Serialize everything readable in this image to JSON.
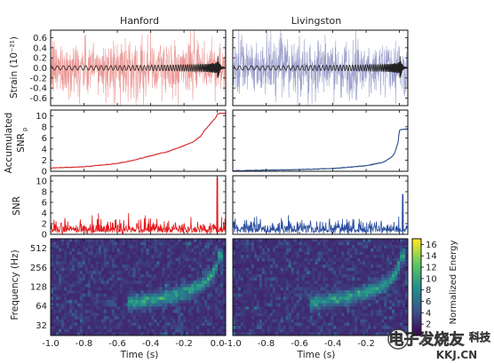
{
  "chart_data": [
    {
      "type": "line",
      "panel": "strain",
      "title_left": "Hanford",
      "title_right": "Livingston",
      "ylabel": "Strain (10⁻²¹)",
      "yticks": [
        "0.6",
        "0.4",
        "0.2",
        "0.0",
        "-0.2",
        "-0.4",
        "-0.6"
      ],
      "ylim": [
        -0.75,
        0.75
      ],
      "xlim": [
        -1.0,
        0.05
      ],
      "series": [
        {
          "detector": "Hanford",
          "color": "#e88a86",
          "kind": "noisy data"
        },
        {
          "detector": "Hanford",
          "color": "#222222",
          "kind": "template"
        },
        {
          "detector": "Livingston",
          "color": "#8b8fc2",
          "kind": "noisy data"
        },
        {
          "detector": "Livingston",
          "color": "#222222",
          "kind": "template"
        }
      ]
    },
    {
      "type": "line",
      "panel": "accumulated-snr",
      "ylabel_1": "Accumulated",
      "ylabel_2": "SNR",
      "ylabel_sub": "p",
      "yticks": [
        "10",
        "8",
        "6",
        "4",
        "2",
        "0"
      ],
      "ylim": [
        0,
        11
      ],
      "xlim": [
        -1.0,
        0.05
      ],
      "series": [
        {
          "detector": "Hanford",
          "color": "#d62728",
          "x": [
            -1.0,
            -0.8,
            -0.6,
            -0.5,
            -0.4,
            -0.3,
            -0.2,
            -0.15,
            -0.1,
            -0.08,
            -0.05,
            -0.03,
            -0.01,
            0.0,
            0.01,
            0.05
          ],
          "y": [
            0.6,
            0.8,
            1.4,
            2.0,
            2.8,
            3.5,
            4.6,
            5.2,
            6.3,
            7.2,
            8.2,
            9.0,
            9.6,
            10.3,
            10.4,
            10.4
          ]
        },
        {
          "detector": "Livingston",
          "color": "#2b4d8a",
          "x": [
            -1.0,
            -0.6,
            -0.4,
            -0.2,
            -0.1,
            -0.07,
            -0.05,
            -0.03,
            -0.01,
            0.0,
            0.01,
            0.05
          ],
          "y": [
            0.1,
            0.3,
            0.5,
            1.0,
            1.6,
            2.1,
            2.5,
            3.2,
            5.0,
            7.4,
            7.5,
            7.6
          ]
        }
      ]
    },
    {
      "type": "line",
      "panel": "snr",
      "ylabel": "SNR",
      "yticks": [
        "10",
        "8",
        "6",
        "4",
        "2",
        "0"
      ],
      "ylim": [
        0,
        11
      ],
      "xlim": [
        -1.0,
        0.05
      ],
      "series": [
        {
          "detector": "Hanford",
          "color": "#e31a1c",
          "peak_x": 0.0,
          "peak_y": 10.5
        },
        {
          "detector": "Livingston",
          "color": "#2c4fa0",
          "peak_x": 0.02,
          "peak_y": 7.5
        }
      ]
    },
    {
      "type": "heatmap",
      "panel": "spectrogram",
      "ylabel": "Frequency (Hz)",
      "yticks": [
        "512",
        "256",
        "128",
        "64",
        "32"
      ],
      "xlabel": "Time (s)",
      "xticks": [
        "-1.0",
        "-0.8",
        "-0.6",
        "-0.4",
        "-0.2",
        "0.0"
      ],
      "xlim": [
        -1.0,
        0.05
      ],
      "colorbar_label": "Normalized Energy",
      "colorbar_ticks": [
        "16",
        "14",
        "12",
        "10",
        "8",
        "6",
        "4",
        "2"
      ],
      "colorbar_range": [
        0,
        17
      ],
      "colormap": [
        "#440154",
        "#3b528b",
        "#21918c",
        "#5ec962",
        "#fde725"
      ]
    }
  ],
  "watermark": {
    "text": "电子发烧友",
    "brand": "科技",
    "site": "KKJ.CN"
  }
}
